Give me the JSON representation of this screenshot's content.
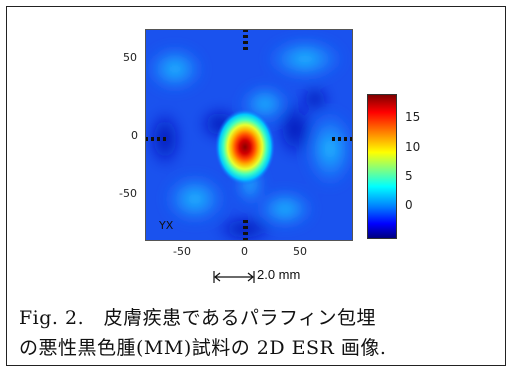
{
  "figure": {
    "yticks": [
      "50",
      "0",
      "-50"
    ],
    "xticks": [
      "-50",
      "0",
      "50"
    ],
    "colorbar_ticks": [
      "15",
      "10",
      "5",
      "0"
    ],
    "panel_label": "YX",
    "scale_label": "2.0 mm",
    "caption_line1": "Fig. 2. 皮膚疾患であるパラフィン包埋",
    "caption_line2": "の悪性黒色腫(MM)試料の 2D ESR 画像."
  },
  "chart_data": {
    "type": "heatmap",
    "xlim": [
      -90,
      90
    ],
    "ylim": [
      -90,
      90
    ],
    "color_range": [
      -3,
      19
    ],
    "colormap": "jet",
    "peak": {
      "x": -5,
      "y": -5,
      "value": 19
    }
  }
}
